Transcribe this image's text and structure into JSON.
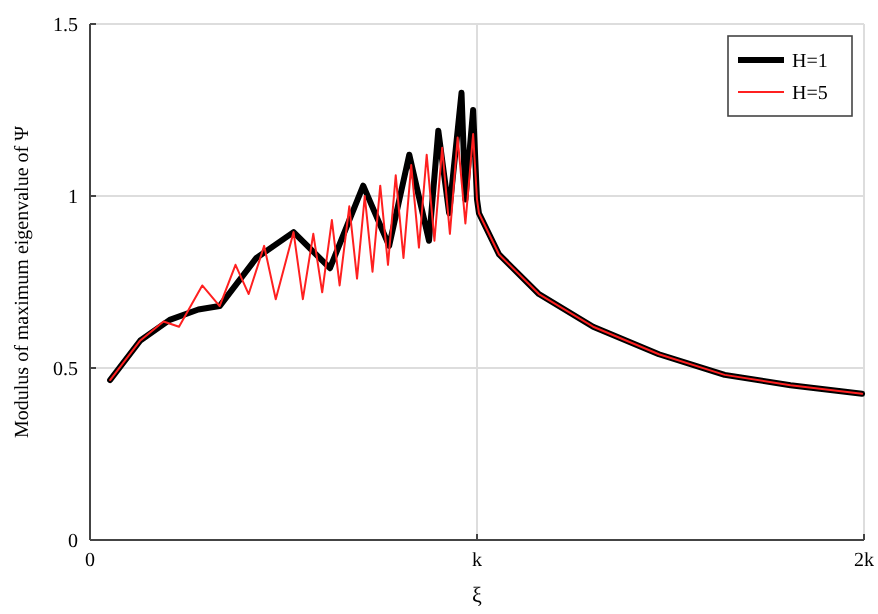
{
  "chart_data": {
    "type": "line",
    "xlabel": "ξ",
    "ylabel": "Modulus of maximum eigenvalue of Ψ",
    "xlim": [
      0,
      2
    ],
    "ylim": [
      0,
      1.5
    ],
    "xticks": [
      0,
      {
        "value": 1,
        "label": "k"
      },
      {
        "value": 2,
        "label": "2k"
      }
    ],
    "yticks": [
      0,
      0.5,
      1,
      1.5
    ],
    "grid": true,
    "legend": "top right",
    "line_style": "solid",
    "marker": "none",
    "series": [
      {
        "name": "H=1",
        "color": "#000000",
        "x": [
          0.052,
          0.13,
          0.206,
          0.28,
          0.335,
          0.43,
          0.526,
          0.62,
          0.706,
          0.773,
          0.825,
          0.876,
          0.9,
          0.928,
          0.96,
          0.97,
          0.99,
          1.0,
          1.005,
          1.057,
          1.16,
          1.3,
          1.47,
          1.64,
          1.81,
          1.995
        ],
        "values": [
          0.465,
          0.58,
          0.64,
          0.67,
          0.68,
          0.82,
          0.895,
          0.79,
          1.03,
          0.855,
          1.12,
          0.87,
          1.19,
          0.95,
          1.3,
          0.99,
          1.25,
          0.99,
          0.95,
          0.83,
          0.715,
          0.62,
          0.54,
          0.48,
          0.45,
          0.425
        ]
      },
      {
        "name": "H=5",
        "color": "#ff2020",
        "x": [
          0.052,
          0.13,
          0.19,
          0.23,
          0.29,
          0.335,
          0.376,
          0.41,
          0.45,
          0.48,
          0.526,
          0.55,
          0.577,
          0.6,
          0.625,
          0.645,
          0.67,
          0.69,
          0.71,
          0.73,
          0.75,
          0.77,
          0.79,
          0.81,
          0.83,
          0.85,
          0.87,
          0.89,
          0.91,
          0.93,
          0.95,
          0.97,
          0.99,
          1.0,
          1.005,
          1.057,
          1.16,
          1.3,
          1.47,
          1.64,
          1.81,
          1.995
        ],
        "values": [
          0.465,
          0.58,
          0.635,
          0.62,
          0.74,
          0.68,
          0.8,
          0.715,
          0.855,
          0.7,
          0.895,
          0.7,
          0.89,
          0.72,
          0.93,
          0.74,
          0.97,
          0.76,
          1.0,
          0.78,
          1.03,
          0.8,
          1.06,
          0.82,
          1.09,
          0.85,
          1.12,
          0.87,
          1.14,
          0.89,
          1.17,
          0.92,
          1.18,
          0.99,
          0.95,
          0.83,
          0.715,
          0.62,
          0.54,
          0.48,
          0.45,
          0.425
        ]
      }
    ]
  }
}
